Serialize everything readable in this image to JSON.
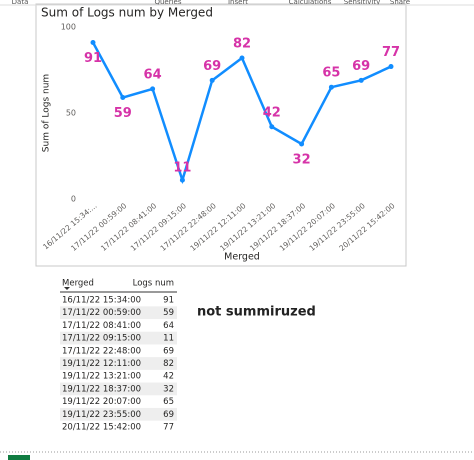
{
  "ribbon": [
    "Data",
    "Queries",
    "Insert",
    "Calculations",
    "Sensitivity",
    "Share"
  ],
  "chart_data": {
    "type": "line",
    "title": "Sum of Logs num by Merged",
    "x_label": "Merged",
    "y_label": "Sum of Logs num",
    "categories": [
      "16/11/22 15:34:...",
      "17/11/22 00:59:00",
      "17/11/22 08:41:00",
      "17/11/22 09:15:00",
      "17/11/22 22:48:00",
      "19/11/22 12:11:00",
      "19/11/22 13:21:00",
      "19/11/22 18:37:00",
      "19/11/22 20:07:00",
      "19/11/22 23:55:00",
      "20/11/22 15:42:00"
    ],
    "values": [
      91,
      59,
      64,
      11,
      69,
      82,
      42,
      32,
      65,
      69,
      77
    ],
    "color": "#118dff",
    "label_color": "#d633a8",
    "ylim": [
      0,
      100
    ],
    "yticks": [
      0,
      50,
      100
    ],
    "grid": false
  },
  "table": {
    "header": [
      "Merged",
      "Logs num"
    ],
    "rows": [
      [
        "16/11/22 15:34:00",
        "91"
      ],
      [
        "17/11/22 00:59:00",
        "59"
      ],
      [
        "17/11/22 08:41:00",
        "64"
      ],
      [
        "17/11/22 09:15:00",
        "11"
      ],
      [
        "17/11/22 22:48:00",
        "69"
      ],
      [
        "19/11/22 12:11:00",
        "82"
      ],
      [
        "19/11/22 13:21:00",
        "42"
      ],
      [
        "19/11/22 18:37:00",
        "32"
      ],
      [
        "19/11/22 20:07:00",
        "65"
      ],
      [
        "19/11/22 23:55:00",
        "69"
      ],
      [
        "20/11/22 15:42:00",
        "77"
      ]
    ]
  },
  "note": "not summiruzed"
}
